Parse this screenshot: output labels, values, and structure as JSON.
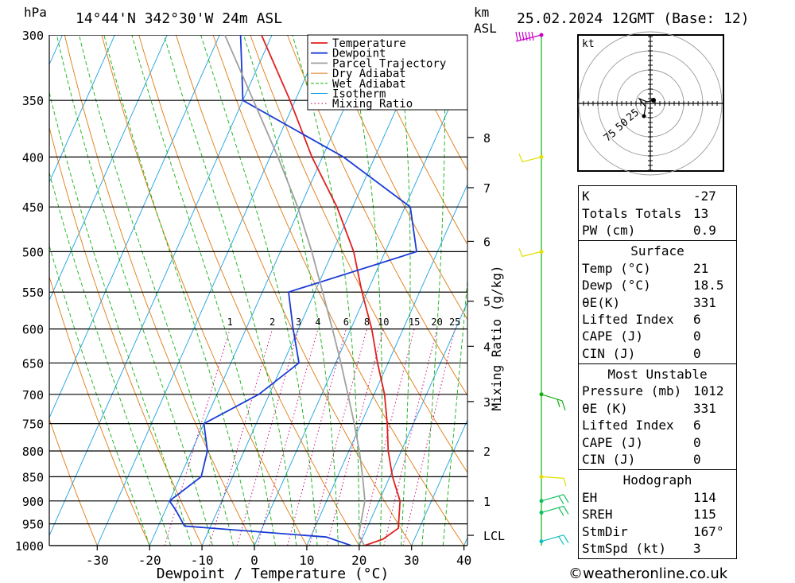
{
  "header": {
    "hpa_label": "hPa",
    "location": "14°44'N  342°30'W  24m  ASL",
    "km_label": "km",
    "asl_label": "ASL",
    "datetime": "25.02.2024  12GMT  (Base: 12)"
  },
  "chart_data": {
    "type": "skew-t",
    "xlabel": "Dewpoint / Temperature (°C)",
    "ylabel_right": "Mixing Ratio (g/kg)",
    "pressure_levels": [
      300,
      350,
      400,
      450,
      500,
      550,
      600,
      650,
      700,
      750,
      800,
      850,
      900,
      950,
      1000
    ],
    "x_ticks": [
      -30,
      -20,
      -10,
      0,
      10,
      20,
      30,
      40
    ],
    "ylim_hpa": [
      1000,
      300
    ],
    "km_ticks": [
      {
        "label": "8",
        "p": 382
      },
      {
        "label": "7",
        "p": 430
      },
      {
        "label": "6",
        "p": 488
      },
      {
        "label": "5",
        "p": 562
      },
      {
        "label": "4",
        "p": 625
      },
      {
        "label": "3",
        "p": 712
      },
      {
        "label": "2",
        "p": 800
      },
      {
        "label": "1",
        "p": 900
      },
      {
        "label": "LCL",
        "p": 976
      }
    ],
    "mixing_ratio_labels": [
      "1",
      "2",
      "3",
      "4",
      "6",
      "8",
      "10",
      "15",
      "20",
      "25"
    ],
    "legend": {
      "position": "top-right",
      "entries": [
        {
          "name": "Temperature",
          "color": "#e02020"
        },
        {
          "name": "Dewpoint",
          "color": "#1a3bd6"
        },
        {
          "name": "Parcel Trajectory",
          "color": "#a0a0a0"
        },
        {
          "name": "Dry Adiabat",
          "color": "#e07a10"
        },
        {
          "name": "Wet Adiabat",
          "color": "#10b010"
        },
        {
          "name": "Isotherm",
          "color": "#1aa0e0"
        },
        {
          "name": "Mixing Ratio",
          "color": "#d01080"
        }
      ]
    },
    "series": [
      {
        "name": "Temperature",
        "color": "#e02020",
        "points": [
          [
            1000,
            21
          ],
          [
            985,
            24
          ],
          [
            960,
            26
          ],
          [
            900,
            24
          ],
          [
            850,
            20.5
          ],
          [
            800,
            17.5
          ],
          [
            750,
            15
          ],
          [
            700,
            12
          ],
          [
            650,
            8
          ],
          [
            600,
            4
          ],
          [
            550,
            -1
          ],
          [
            500,
            -6
          ],
          [
            450,
            -13
          ],
          [
            400,
            -22
          ],
          [
            350,
            -31
          ],
          [
            300,
            -42
          ]
        ]
      },
      {
        "name": "Dewpoint",
        "color": "#1a3bd6",
        "points": [
          [
            1000,
            18.5
          ],
          [
            980,
            13
          ],
          [
            955,
            -15
          ],
          [
            920,
            -18
          ],
          [
            900,
            -20
          ],
          [
            850,
            -16
          ],
          [
            800,
            -17
          ],
          [
            750,
            -20
          ],
          [
            700,
            -12
          ],
          [
            650,
            -7
          ],
          [
            600,
            -11
          ],
          [
            550,
            -15
          ],
          [
            500,
            6
          ],
          [
            450,
            1
          ],
          [
            400,
            -16
          ],
          [
            350,
            -40
          ],
          [
            300,
            -46
          ]
        ]
      },
      {
        "name": "Parcel Trajectory",
        "color": "#a0a0a0",
        "points": [
          [
            1000,
            21
          ],
          [
            975,
            19
          ],
          [
            900,
            17.3
          ],
          [
            850,
            14.8
          ],
          [
            800,
            12
          ],
          [
            750,
            8.7
          ],
          [
            700,
            5
          ],
          [
            650,
            1
          ],
          [
            600,
            -3.5
          ],
          [
            550,
            -8.5
          ],
          [
            500,
            -14
          ],
          [
            450,
            -20.5
          ],
          [
            400,
            -28.5
          ],
          [
            350,
            -38
          ],
          [
            300,
            -49
          ]
        ]
      }
    ],
    "hodograph": {
      "unit": "kt",
      "ring_labels": [
        "25",
        "50",
        "75"
      ]
    },
    "wind_profile_barbs": [
      {
        "p": 300,
        "color": "#cc00cc"
      },
      {
        "p": 400,
        "color": "#e0e000"
      },
      {
        "p": 500,
        "color": "#e0e000"
      },
      {
        "p": 700,
        "color": "#10b010"
      },
      {
        "p": 850,
        "color": "#e0e000"
      },
      {
        "p": 900,
        "color": "#10c060"
      },
      {
        "p": 925,
        "color": "#10c060"
      },
      {
        "p": 990,
        "color": "#10c0c0"
      }
    ]
  },
  "indices": {
    "top": [
      {
        "k": "K",
        "v": "-27"
      },
      {
        "k": "Totals Totals",
        "v": "13"
      },
      {
        "k": "PW (cm)",
        "v": "0.9"
      }
    ],
    "surface_title": "Surface",
    "surface": [
      {
        "k": "Temp (°C)",
        "v": "21"
      },
      {
        "k": "Dewp (°C)",
        "v": "18.5"
      },
      {
        "k": "θE(K)",
        "v": "331"
      },
      {
        "k": "Lifted Index",
        "v": "6"
      },
      {
        "k": "CAPE (J)",
        "v": "0"
      },
      {
        "k": "CIN (J)",
        "v": "0"
      }
    ],
    "mu_title": "Most Unstable",
    "mu": [
      {
        "k": "Pressure (mb)",
        "v": "1012"
      },
      {
        "k": "θE (K)",
        "v": "331"
      },
      {
        "k": "Lifted Index",
        "v": "6"
      },
      {
        "k": "CAPE (J)",
        "v": "0"
      },
      {
        "k": "CIN (J)",
        "v": "0"
      }
    ],
    "hodo_title": "Hodograph",
    "hodo": [
      {
        "k": "EH",
        "v": "114"
      },
      {
        "k": "SREH",
        "v": "115"
      },
      {
        "k": "StmDir",
        "v": "167°"
      },
      {
        "k": "StmSpd (kt)",
        "v": "3"
      }
    ]
  },
  "credit": "©weatheronline.co.uk"
}
